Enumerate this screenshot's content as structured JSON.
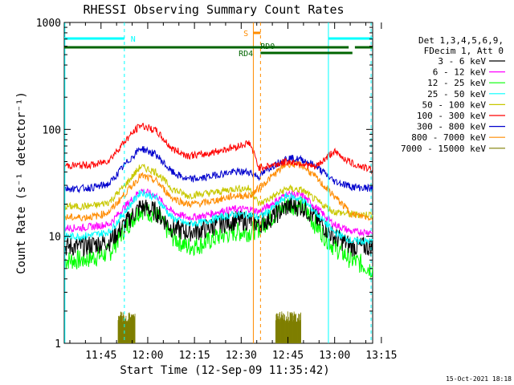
{
  "chart_data": {
    "type": "line",
    "title": "RHESSI Observing Summary Count Rates",
    "xlabel": "Start Time (12-Sep-09 11:35:42)",
    "ylabel": "Count Rate (s⁻¹ detector⁻¹)",
    "yscale": "log",
    "ylim": [
      1,
      1000
    ],
    "xlim_minutes": [
      -2.5,
      96.5
    ],
    "x_tick_labels": [
      "11:45",
      "12:00",
      "12:15",
      "12:30",
      "12:45",
      "13:00",
      "13:15"
    ],
    "x_ticks_minutes": [
      9.3,
      24.3,
      39.3,
      54.3,
      69.3,
      84.3,
      99.3
    ],
    "y_tick_labels": [
      "1",
      "10",
      "100",
      "1000"
    ],
    "y_ticks": [
      1,
      10,
      100,
      1000
    ],
    "legend_header": [
      "Det 1,3,4,5,6,9,",
      "FDecim 1, Att 0"
    ],
    "legend_position": "right",
    "series": [
      {
        "name": "3 - 6 keV",
        "color": "#000000",
        "values": [
          8,
          8,
          8.5,
          9,
          13,
          19,
          17,
          12,
          11,
          11.5,
          13,
          14,
          14,
          13,
          15,
          19,
          19,
          15,
          10,
          8,
          8
        ]
      },
      {
        "name": "6 - 12 keV",
        "color": "#ff00ff",
        "values": [
          12,
          12,
          12.5,
          13,
          19,
          27,
          24,
          17,
          15,
          15.5,
          17,
          18,
          18,
          17,
          20,
          25,
          24,
          19,
          13,
          11,
          11
        ]
      },
      {
        "name": "12 - 25 keV",
        "color": "#00ff00",
        "values": [
          6,
          6,
          6.5,
          7,
          12,
          18,
          16,
          10,
          8,
          8.5,
          10,
          11,
          11,
          12,
          15,
          20,
          19,
          13,
          8,
          6,
          5
        ]
      },
      {
        "name": "25 - 50 keV",
        "color": "#00ffff",
        "values": [
          10,
          10,
          10.5,
          11,
          17,
          26,
          23,
          15,
          13,
          13.5,
          15,
          16,
          16,
          15,
          18,
          24,
          22,
          17,
          11,
          9,
          9
        ]
      },
      {
        "name": "50 - 100 keV",
        "color": "#c8c800",
        "values": [
          19,
          19,
          19.5,
          21,
          30,
          45,
          40,
          28,
          24,
          25,
          26,
          28,
          28,
          20,
          23,
          28,
          27,
          22,
          17,
          16,
          16
        ]
      },
      {
        "name": "100 - 300 keV",
        "color": "#ff0000",
        "values": [
          46,
          46,
          47,
          52,
          78,
          110,
          97,
          66,
          57,
          58,
          63,
          68,
          75,
          44,
          46,
          50,
          48,
          44,
          62,
          48,
          42
        ]
      },
      {
        "name": "300 - 800 keV",
        "color": "#0000cd",
        "values": [
          28,
          28,
          29,
          31,
          47,
          67,
          58,
          40,
          34,
          35,
          38,
          40,
          40,
          36,
          45,
          54,
          52,
          46,
          33,
          29,
          28
        ]
      },
      {
        "name": "800 - 7000 keV",
        "color": "#ff8c00",
        "values": [
          15,
          15,
          15.5,
          17,
          25,
          37,
          33,
          23,
          20,
          20.5,
          22,
          24,
          24,
          28,
          36,
          48,
          46,
          36,
          24,
          16,
          15
        ]
      },
      {
        "name": "7000 - 15000 keV",
        "color": "#7f7f00",
        "values": []
      }
    ],
    "annotations": [
      {
        "label": "N",
        "color": "#00ffff",
        "start_minute": -2.5,
        "end_minute": 16.8
      },
      {
        "label": "S",
        "color": "#ff8c00",
        "start_minute": 58.2,
        "end_minute": 60.5
      },
      {
        "label": "RD0",
        "color": "#006400",
        "start_minute": -2.5,
        "end_minute": 96.5
      },
      {
        "label": "RD4",
        "color": "#006400",
        "start_minute": 60.5,
        "end_minute": 90.0
      }
    ],
    "x_sample_minutes": [
      -2,
      3,
      8,
      12,
      17,
      22,
      27,
      32,
      37,
      42,
      47,
      52,
      57,
      60,
      64,
      69,
      74,
      78,
      84,
      90,
      96
    ]
  },
  "footer_timestamp": "15-Oct-2021 18:18"
}
